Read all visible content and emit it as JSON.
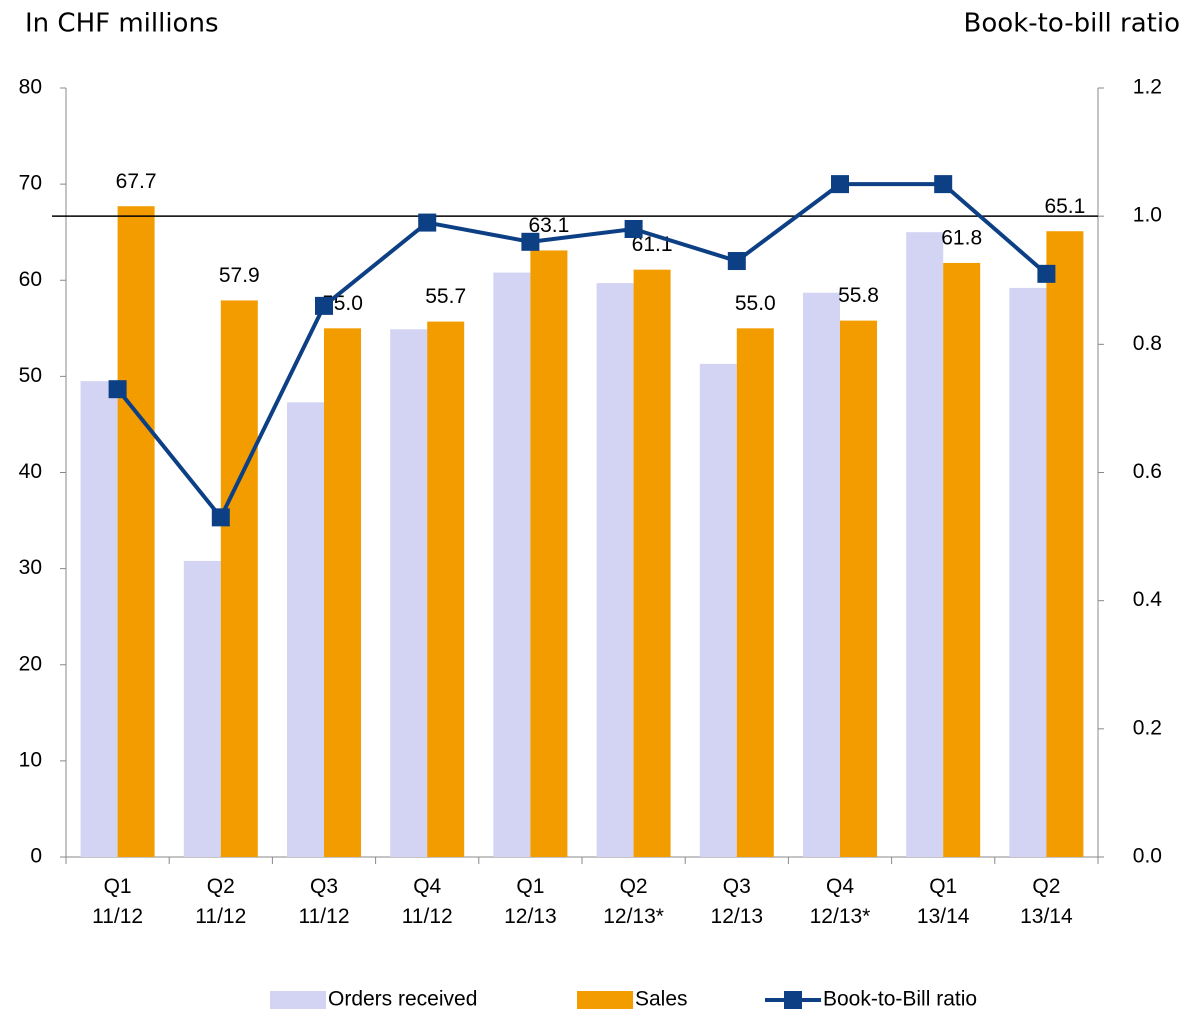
{
  "chart_data": {
    "type": "bar_line",
    "y_axis_label": "In CHF millions",
    "y2_axis_label": "Book-to-bill ratio",
    "categories": [
      "Q1\n11/12",
      "Q2\n11/12",
      "Q3\n11/12",
      "Q4\n11/12",
      "Q1\n12/13",
      "Q2\n12/13*",
      "Q3\n12/13",
      "Q4\n12/13*",
      "Q1\n13/14",
      "Q2\n13/14"
    ],
    "series": [
      {
        "name": "Orders received",
        "type": "bar",
        "color": "#d3d3f3",
        "values": [
          49.5,
          30.8,
          47.3,
          54.9,
          60.8,
          59.7,
          51.3,
          58.7,
          65.0,
          59.2
        ]
      },
      {
        "name": "Sales",
        "type": "bar",
        "color": "#f39c00",
        "values": [
          67.7,
          57.9,
          55.0,
          55.7,
          63.1,
          61.1,
          55.0,
          55.8,
          61.8,
          65.1
        ],
        "value_labels": [
          "67.7",
          "57.9",
          "55.0",
          "55.7",
          "63.1",
          "61.1",
          "55.0",
          "55.8",
          "61.8",
          "65.1"
        ]
      },
      {
        "name": "Book-to-Bill ratio",
        "type": "line",
        "axis": "y2",
        "color": "#0d3f84",
        "values": [
          0.73,
          0.53,
          0.86,
          0.99,
          0.96,
          0.98,
          0.93,
          1.05,
          1.05,
          0.91
        ]
      }
    ],
    "ylim": [
      0,
      80
    ],
    "yticks": [
      0,
      10,
      20,
      30,
      40,
      50,
      60,
      70,
      80
    ],
    "y2lim": [
      0,
      1.2
    ],
    "y2ticks": [
      {
        "value": 0,
        "label": "0.0"
      },
      0.2,
      0.4,
      0.6,
      0.8,
      {
        "value": 1,
        "label": "1.0"
      },
      1.2
    ],
    "y2_reference_line": 1,
    "legend": "bottom"
  }
}
